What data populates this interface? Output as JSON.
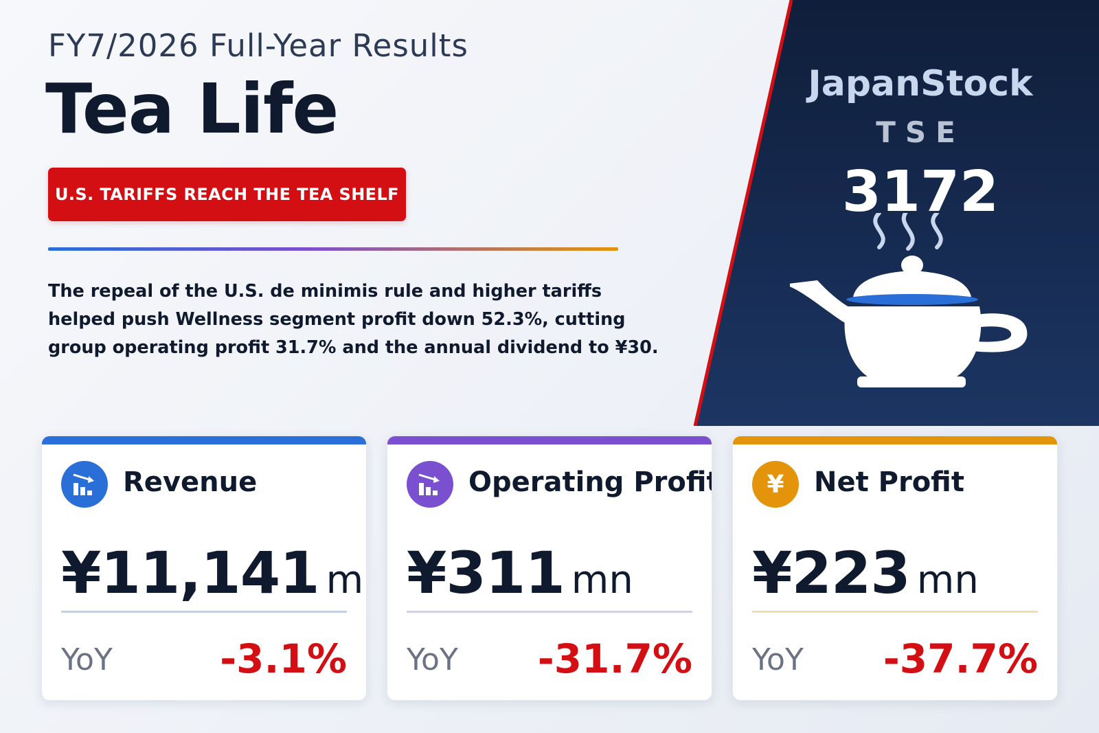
{
  "header": {
    "eyebrow": "FY7/2026 Full-Year Results",
    "company": "Tea Life",
    "badge": "U.S. TARIFFS REACH THE TEA SHELF",
    "summary": "The repeal of the U.S. de minimis rule and higher tariffs helped push Wellness segment profit down 52.3%, cutting group operating profit 31.7% and the annual dividend to ¥30."
  },
  "brand": {
    "name": "JapanStock",
    "exchange": "TSE",
    "ticker": "3172"
  },
  "colors": {
    "red": "#d40f14",
    "navy": "#11213f",
    "blue": "#2a6fd8",
    "purple": "#7a4fd0",
    "orange": "#e3940a"
  },
  "cards": [
    {
      "label": "Revenue",
      "value": "¥11,141",
      "unit": "mn",
      "yoy_label": "YoY",
      "yoy": "-3.1%",
      "icon": "bar-chart-down-icon",
      "accent": "#2a6fd8",
      "rule": "#b9d3ee"
    },
    {
      "label": "Operating Profit",
      "value": "¥311",
      "unit": "mn",
      "yoy_label": "YoY",
      "yoy": "-31.7%",
      "icon": "bar-chart-down-icon",
      "accent": "#7a4fd0",
      "rule": "#d6cdeb"
    },
    {
      "label": "Net Profit",
      "value": "¥223",
      "unit": "mn",
      "yoy_label": "YoY",
      "yoy": "-37.7%",
      "icon": "yen-icon",
      "icon_glyph": "¥",
      "accent": "#e3940a",
      "rule": "#f1ddb0"
    }
  ]
}
